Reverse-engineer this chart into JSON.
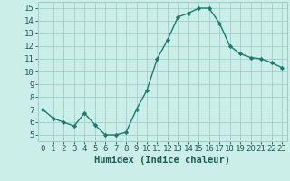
{
  "x": [
    0,
    1,
    2,
    3,
    4,
    5,
    6,
    7,
    8,
    9,
    10,
    11,
    12,
    13,
    14,
    15,
    16,
    17,
    18,
    19,
    20,
    21,
    22,
    23
  ],
  "y": [
    7.0,
    6.3,
    6.0,
    5.7,
    6.7,
    5.8,
    5.0,
    5.0,
    5.2,
    7.0,
    8.5,
    11.0,
    12.5,
    14.3,
    14.6,
    15.0,
    15.0,
    13.8,
    12.0,
    11.4,
    11.1,
    11.0,
    10.7,
    10.3
  ],
  "line_color": "#1a7a6e",
  "marker_color": "#1a7a6e",
  "bg_color": "#cceee8",
  "grid_color": "#9ecfc8",
  "xlabel": "Humidex (Indice chaleur)",
  "xlim": [
    -0.5,
    23.5
  ],
  "ylim": [
    4.5,
    15.5
  ],
  "yticks": [
    5,
    6,
    7,
    8,
    9,
    10,
    11,
    12,
    13,
    14,
    15
  ],
  "xticks": [
    0,
    1,
    2,
    3,
    4,
    5,
    6,
    7,
    8,
    9,
    10,
    11,
    12,
    13,
    14,
    15,
    16,
    17,
    18,
    19,
    20,
    21,
    22,
    23
  ],
  "font_color": "#1a5c52",
  "tick_fontsize": 6.5,
  "xlabel_fontsize": 7.5
}
